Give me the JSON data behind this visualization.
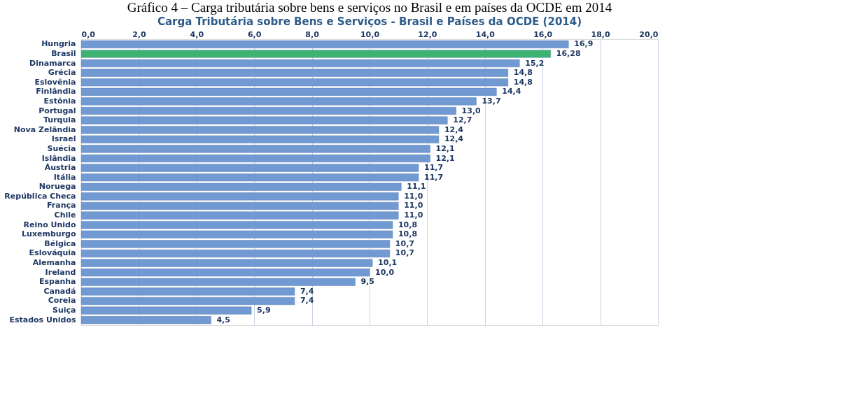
{
  "chart_data": {
    "type": "bar",
    "orientation": "horizontal",
    "title": "Gráfico 4 – Carga tributária sobre bens e serviços no Brasil e em países da OCDE em 2014",
    "subtitle": "Carga Tributária sobre Bens e Serviços - Brasil e Países da OCDE (2014)",
    "categories": [
      "Hungria",
      "Brasil",
      "Dinamarca",
      "Grécia",
      "Eslovênia",
      "Finlândia",
      "Estônia",
      "Portugal",
      "Turquia",
      "Nova Zelândia",
      "Israel",
      "Suécia",
      "Islândia",
      "Áustria",
      "Itália",
      "Noruega",
      "República Checa",
      "França",
      "Chile",
      "Reino Unido",
      "Luxemburgo",
      "Bélgica",
      "Eslováquia",
      "Alemanha",
      "Ireland",
      "Espanha",
      "Canadá",
      "Coreia",
      "Suiça",
      "Estados Unidos"
    ],
    "values": [
      16.9,
      16.28,
      15.2,
      14.8,
      14.8,
      14.4,
      13.7,
      13.0,
      12.7,
      12.4,
      12.4,
      12.1,
      12.1,
      11.7,
      11.7,
      11.1,
      11.0,
      11.0,
      11.0,
      10.8,
      10.8,
      10.7,
      10.7,
      10.1,
      10.0,
      9.5,
      7.4,
      7.4,
      5.9,
      4.5
    ],
    "value_labels": [
      "16,9",
      "16,28",
      "15,2",
      "14,8",
      "14,8",
      "14,4",
      "13,7",
      "13,0",
      "12,7",
      "12,4",
      "12,4",
      "12,1",
      "12,1",
      "11,7",
      "11,7",
      "11,1",
      "11,0",
      "11,0",
      "11,0",
      "10,8",
      "10,8",
      "10,7",
      "10,7",
      "10,1",
      "10,0",
      "9,5",
      "7,4",
      "7,4",
      "5,9",
      "4,5"
    ],
    "colors": [
      "#7199d2",
      "#3cb371",
      "#7199d2",
      "#7199d2",
      "#7199d2",
      "#7199d2",
      "#7199d2",
      "#7199d2",
      "#7199d2",
      "#7199d2",
      "#7199d2",
      "#7199d2",
      "#7199d2",
      "#7199d2",
      "#7199d2",
      "#7199d2",
      "#7199d2",
      "#7199d2",
      "#7199d2",
      "#7199d2",
      "#7199d2",
      "#7199d2",
      "#7199d2",
      "#7199d2",
      "#7199d2",
      "#7199d2",
      "#7199d2",
      "#7199d2",
      "#7199d2",
      "#7199d2"
    ],
    "xlim": [
      0,
      20
    ],
    "xticks": [
      {
        "value": 0,
        "label": "0,0"
      },
      {
        "value": 2,
        "label": "2,0"
      },
      {
        "value": 4,
        "label": "4,0"
      },
      {
        "value": 6,
        "label": "6,0"
      },
      {
        "value": 8,
        "label": "8,0"
      },
      {
        "value": 10,
        "label": "10,0"
      },
      {
        "value": 12,
        "label": "12,0"
      },
      {
        "value": 14,
        "label": "14,0"
      },
      {
        "value": 16,
        "label": "16,0"
      },
      {
        "value": 18,
        "label": "18,0"
      },
      {
        "value": 20,
        "label": "20,0"
      }
    ],
    "grid": "x"
  }
}
